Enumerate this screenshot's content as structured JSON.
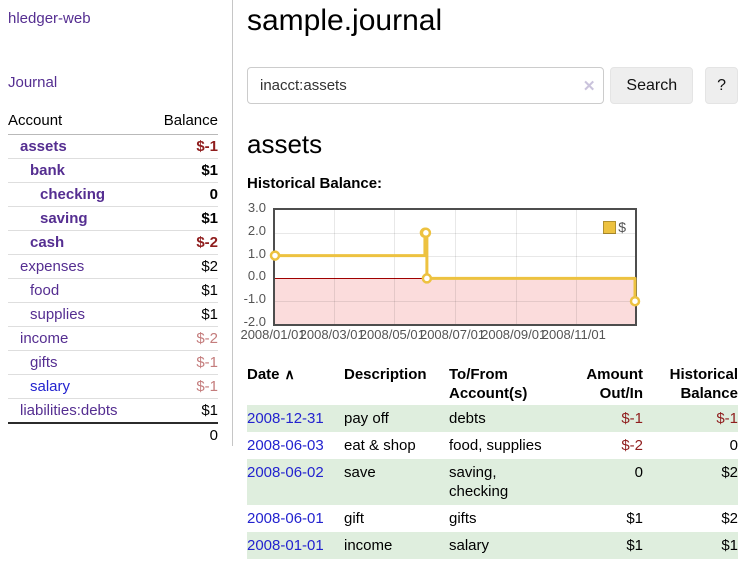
{
  "sidebar": {
    "app_title": "hledger-web",
    "journal_link": "Journal",
    "accounts": {
      "col_account": "Account",
      "col_balance": "Balance",
      "rows": [
        {
          "name": "assets",
          "balance": "$-1"
        },
        {
          "name": "bank",
          "balance": "$1"
        },
        {
          "name": "checking",
          "balance": "0"
        },
        {
          "name": "saving",
          "balance": "$1"
        },
        {
          "name": "cash",
          "balance": "$-2"
        },
        {
          "name": "expenses",
          "balance": "$2"
        },
        {
          "name": "food",
          "balance": "$1"
        },
        {
          "name": "supplies",
          "balance": "$1"
        },
        {
          "name": "income",
          "balance": "$-2"
        },
        {
          "name": "gifts",
          "balance": "$-1"
        },
        {
          "name": "salary",
          "balance": "$-1"
        },
        {
          "name": "liabilities:debts",
          "balance": "$1"
        }
      ],
      "total": "0"
    }
  },
  "header": {
    "title": "sample.journal"
  },
  "search": {
    "value": "inacct:assets",
    "button_label": "Search",
    "help_label": "?"
  },
  "icons": {
    "clear": "✕",
    "sort_asc": "∧"
  },
  "account_page": {
    "title": "assets",
    "chart_heading": "Historical Balance:"
  },
  "chart_data": {
    "type": "line",
    "step": true,
    "title": "Historical Balance:",
    "series": [
      {
        "name": "$",
        "color": "#edc240",
        "points": [
          [
            "2008-01-01",
            1
          ],
          [
            "2008-06-01",
            2
          ],
          [
            "2008-06-02",
            2
          ],
          [
            "2008-06-03",
            0
          ],
          [
            "2008-12-31",
            -1
          ]
        ]
      }
    ],
    "xlim": [
      "2008-01-01",
      "2008-12-31"
    ],
    "ylim": [
      -2,
      3
    ],
    "yticks": [
      {
        "value": 3,
        "label": "3.0"
      },
      {
        "value": 2,
        "label": "2.0"
      },
      {
        "value": 1,
        "label": "1.0"
      },
      {
        "value": 0,
        "label": "0.0"
      },
      {
        "value": -1,
        "label": "-1.0"
      },
      {
        "value": -2,
        "label": "-2.0"
      }
    ],
    "xticks": [
      {
        "date": "2008-01-01",
        "label": "2008/01/01"
      },
      {
        "date": "2008-03-01",
        "label": "2008/03/01"
      },
      {
        "date": "2008-05-01",
        "label": "2008/05/01"
      },
      {
        "date": "2008-07-01",
        "label": "2008/07/01"
      },
      {
        "date": "2008-09-01",
        "label": "2008/09/01"
      },
      {
        "date": "2008-11-01",
        "label": "2008/11/01"
      }
    ],
    "grid": true,
    "legend_position": "top-right",
    "negative_region_color": "#fbdcdc",
    "zero_line_color": "#a00000"
  },
  "register": {
    "columns": {
      "date": "Date",
      "description": "Description",
      "accounts": "To/From Account(s)",
      "amount": "Amount Out/In",
      "balance": "Historical Balance"
    },
    "rows": [
      {
        "date": "2008-12-31",
        "description": "pay off",
        "accounts": "debts",
        "amount": "$-1",
        "balance": "$-1"
      },
      {
        "date": "2008-06-03",
        "description": "eat & shop",
        "accounts": "food, supplies",
        "amount": "$-2",
        "balance": "0"
      },
      {
        "date": "2008-06-02",
        "description": "save",
        "accounts": "saving, checking",
        "amount": "0",
        "balance": "$2"
      },
      {
        "date": "2008-06-01",
        "description": "gift",
        "accounts": "gifts",
        "amount": "$1",
        "balance": "$2"
      },
      {
        "date": "2008-01-01",
        "description": "income",
        "accounts": "salary",
        "amount": "$1",
        "balance": "$1"
      }
    ]
  }
}
